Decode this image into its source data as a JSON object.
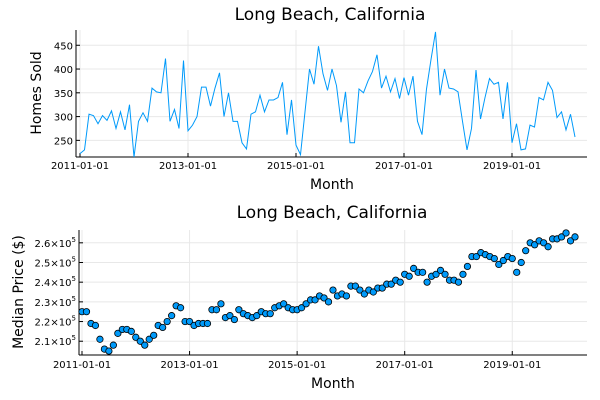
{
  "chart_data": [
    {
      "type": "line",
      "title": "Long Beach, California",
      "xlabel": "Month",
      "ylabel": "Homes Sold",
      "x_start": "2011-01-01",
      "x_step": "1 month",
      "xticks": [
        "2011-01-01",
        "2013-01-01",
        "2015-01-01",
        "2017-01-01",
        "2019-01-01"
      ],
      "xlim": [
        "2011-01-01",
        "2019-12-01"
      ],
      "yticks": [
        250,
        300,
        350,
        400,
        450
      ],
      "ylim": [
        215,
        480
      ],
      "grid": true,
      "legend": "none",
      "color": "#009AFA",
      "series": [
        {
          "values": [
            222,
            230,
            305,
            302,
            285,
            302,
            292,
            312,
            275,
            310,
            272,
            325,
            215,
            290,
            308,
            290,
            360,
            352,
            350,
            422,
            290,
            315,
            275,
            418,
            270,
            282,
            300,
            362,
            362,
            322,
            360,
            392,
            300,
            350,
            290,
            290,
            245,
            232,
            305,
            310,
            345,
            310,
            335,
            335,
            340,
            372,
            262,
            335,
            240,
            220,
            310,
            400,
            368,
            448,
            390,
            355,
            400,
            365,
            288,
            352,
            245,
            245,
            358,
            350,
            375,
            395,
            430,
            360,
            385,
            352,
            380,
            338,
            382,
            345,
            385,
            290,
            262,
            358,
            420,
            478,
            345,
            400,
            360,
            358,
            352,
            290,
            230,
            275,
            398,
            295,
            340,
            380,
            368,
            372,
            295,
            372,
            245,
            285,
            230,
            232,
            282,
            278,
            340,
            335,
            372,
            355,
            298,
            310,
            272,
            305,
            257
          ]
        }
      ]
    },
    {
      "type": "scatter",
      "title": "Long Beach, California",
      "xlabel": "Month",
      "ylabel": "Median Price ($)",
      "x_start": "2011-01-01",
      "x_step": "1 month",
      "xticks": [
        "2011-01-01",
        "2013-01-01",
        "2015-01-01",
        "2017-01-01",
        "2019-01-01"
      ],
      "xlim": [
        "2011-01-01",
        "2019-12-01"
      ],
      "yticks": [
        "2.1×10^5",
        "2.2×10^5",
        "2.3×10^5",
        "2.4×10^5",
        "2.5×10^5",
        "2.6×10^5"
      ],
      "ylim": [
        203000,
        266000
      ],
      "grid": true,
      "legend": "none",
      "color": "#009AFA",
      "series": [
        {
          "values": [
            225000,
            225000,
            219000,
            218000,
            211000,
            206000,
            205000,
            208000,
            214000,
            216000,
            216000,
            215000,
            212000,
            210000,
            208000,
            211000,
            213000,
            218000,
            217000,
            220000,
            223000,
            228000,
            227000,
            220000,
            220000,
            218000,
            219000,
            219000,
            219000,
            226000,
            226000,
            229000,
            222000,
            223000,
            221000,
            226000,
            224000,
            223000,
            222000,
            223000,
            225000,
            224000,
            224000,
            227000,
            228000,
            229000,
            227000,
            226000,
            226000,
            227000,
            229000,
            231000,
            231000,
            233000,
            232000,
            230000,
            236000,
            233000,
            234000,
            233000,
            238000,
            238000,
            236000,
            234000,
            236000,
            235000,
            237000,
            237000,
            239000,
            239000,
            241000,
            240000,
            244000,
            243000,
            247000,
            245000,
            245000,
            240000,
            243000,
            244000,
            246000,
            244000,
            241000,
            241000,
            240000,
            244000,
            248000,
            253000,
            253000,
            255000,
            254000,
            253000,
            252000,
            249000,
            251000,
            253000,
            252000,
            245000,
            250000,
            256000,
            260000,
            259000,
            261000,
            260000,
            258000,
            262000,
            262000,
            263000,
            265000,
            261000,
            263000
          ]
        }
      ]
    }
  ]
}
